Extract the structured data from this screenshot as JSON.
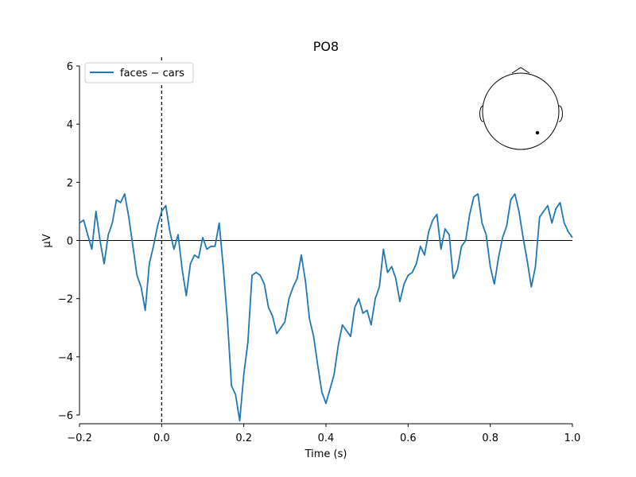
{
  "chart_data": {
    "type": "line",
    "title": "PO8",
    "xlabel": "Time (s)",
    "ylabel": "µV",
    "xlim": [
      -0.2,
      1.0
    ],
    "ylim": [
      -6.3,
      6.3
    ],
    "xticks": [
      -0.2,
      0.0,
      0.2,
      0.4,
      0.6,
      0.8,
      1.0
    ],
    "xtick_labels": [
      "−0.2",
      "0.0",
      "0.2",
      "0.4",
      "0.6",
      "0.8",
      "1.0"
    ],
    "yticks": [
      -6,
      -4,
      -2,
      0,
      2,
      4,
      6
    ],
    "ytick_labels": [
      "−6",
      "−4",
      "−2",
      "0",
      "2",
      "4",
      "6"
    ],
    "grid": false,
    "legend_position": "top-left",
    "reference_lines": {
      "horizontal_y": 0,
      "vertical_x": 0.0
    },
    "inset": {
      "type": "head-sensor-map",
      "sensor": "PO8",
      "position": "top-right"
    },
    "colors": {
      "series": "#1f77b4",
      "axes": "#000000",
      "sensor_dot": "#000000"
    },
    "series": [
      {
        "name": "faces − cars",
        "x": [
          -0.2,
          -0.19,
          -0.18,
          -0.17,
          -0.16,
          -0.15,
          -0.14,
          -0.13,
          -0.12,
          -0.11,
          -0.1,
          -0.09,
          -0.08,
          -0.07,
          -0.06,
          -0.05,
          -0.04,
          -0.03,
          -0.02,
          -0.01,
          0.0,
          0.01,
          0.02,
          0.03,
          0.04,
          0.05,
          0.06,
          0.07,
          0.08,
          0.09,
          0.1,
          0.11,
          0.12,
          0.13,
          0.14,
          0.15,
          0.16,
          0.17,
          0.18,
          0.19,
          0.2,
          0.21,
          0.22,
          0.23,
          0.24,
          0.25,
          0.26,
          0.27,
          0.28,
          0.29,
          0.3,
          0.31,
          0.32,
          0.33,
          0.34,
          0.35,
          0.36,
          0.37,
          0.38,
          0.39,
          0.4,
          0.41,
          0.42,
          0.43,
          0.44,
          0.45,
          0.46,
          0.47,
          0.48,
          0.49,
          0.5,
          0.51,
          0.52,
          0.53,
          0.54,
          0.55,
          0.56,
          0.57,
          0.58,
          0.59,
          0.6,
          0.61,
          0.62,
          0.63,
          0.64,
          0.65,
          0.66,
          0.67,
          0.68,
          0.69,
          0.7,
          0.71,
          0.72,
          0.73,
          0.74,
          0.75,
          0.76,
          0.77,
          0.78,
          0.79,
          0.8,
          0.81,
          0.82,
          0.83,
          0.84,
          0.85,
          0.86,
          0.87,
          0.88,
          0.89,
          0.9,
          0.91,
          0.92,
          0.93,
          0.94,
          0.95,
          0.96,
          0.97,
          0.98,
          0.99,
          1.0
        ],
        "y": [
          0.6,
          0.7,
          0.2,
          -0.3,
          1.0,
          0.0,
          -0.8,
          0.2,
          0.6,
          1.4,
          1.3,
          1.6,
          0.8,
          -0.2,
          -1.2,
          -1.6,
          -2.4,
          -0.8,
          -0.2,
          0.5,
          1.0,
          1.2,
          0.3,
          -0.3,
          0.2,
          -1.0,
          -1.9,
          -0.8,
          -0.5,
          -0.6,
          0.1,
          -0.3,
          -0.2,
          -0.2,
          0.6,
          -0.9,
          -2.7,
          -5.0,
          -5.3,
          -6.2,
          -4.6,
          -3.5,
          -1.2,
          -1.1,
          -1.2,
          -1.5,
          -2.3,
          -2.6,
          -3.2,
          -3.0,
          -2.8,
          -2.0,
          -1.6,
          -1.3,
          -0.5,
          -1.4,
          -2.7,
          -3.3,
          -4.3,
          -5.2,
          -5.6,
          -5.1,
          -4.6,
          -3.6,
          -2.9,
          -3.1,
          -3.3,
          -2.3,
          -2.0,
          -2.5,
          -2.4,
          -2.9,
          -2.0,
          -1.6,
          -0.3,
          -1.1,
          -0.9,
          -1.3,
          -2.1,
          -1.5,
          -1.2,
          -1.1,
          -0.8,
          -0.2,
          -0.5,
          0.3,
          0.7,
          0.9,
          -0.3,
          0.4,
          0.2,
          -1.3,
          -1.0,
          -0.2,
          0.0,
          0.9,
          1.5,
          1.6,
          0.6,
          0.2,
          -0.9,
          -1.5,
          -0.6,
          0.1,
          0.5,
          1.4,
          1.6,
          1.0,
          0.1,
          -0.7,
          -1.6,
          -0.9,
          0.8,
          1.0,
          1.2,
          0.6,
          1.1,
          1.3,
          0.6,
          0.3,
          0.1
        ]
      }
    ]
  }
}
